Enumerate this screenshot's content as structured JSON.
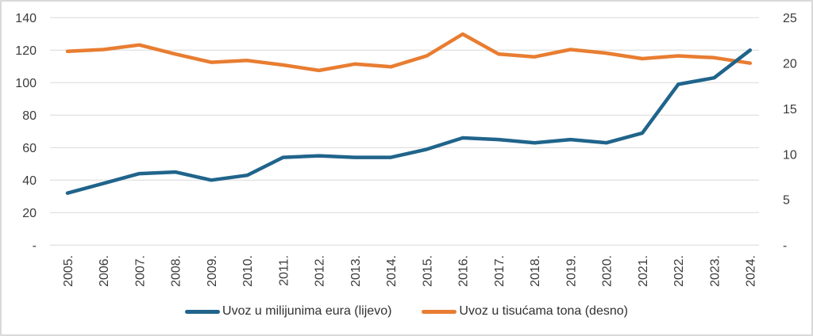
{
  "chart_data": {
    "type": "line",
    "title": "",
    "xlabel": "",
    "ylabel": "",
    "grid": true,
    "legend_position": "bottom",
    "categories": [
      "2005.",
      "2006.",
      "2007.",
      "2008.",
      "2009.",
      "2010.",
      "2011.",
      "2012.",
      "2013.",
      "2014.",
      "2015.",
      "2016.",
      "2017.",
      "2018.",
      "2019.",
      "2020.",
      "2021.",
      "2022.",
      "2023.",
      "2024."
    ],
    "series": [
      {
        "name": "Uvoz u milijunima eura (lijevo)",
        "axis": "left",
        "color": "#20648B",
        "values": [
          32,
          38,
          44,
          45,
          40,
          43,
          54,
          55,
          54,
          54,
          59,
          66,
          65,
          63,
          65,
          63,
          69,
          99,
          103,
          120
        ]
      },
      {
        "name": "Uvoz u tisućama tona (desno)",
        "axis": "right",
        "color": "#E87D31",
        "values": [
          21.3,
          21.5,
          22.0,
          21.0,
          20.1,
          20.3,
          19.8,
          19.2,
          19.9,
          19.6,
          20.8,
          23.2,
          21.0,
          20.7,
          21.5,
          21.1,
          20.5,
          20.8,
          20.6,
          20.0
        ]
      }
    ],
    "left_axis": {
      "min": 0,
      "max": 140,
      "tick_step": 20,
      "tick_labels": [
        "-",
        "20",
        "40",
        "60",
        "80",
        "100",
        "120",
        "140"
      ]
    },
    "right_axis": {
      "min": 0,
      "max": 25,
      "tick_step": 5,
      "tick_labels": [
        "-",
        "5",
        "10",
        "15",
        "20",
        "25"
      ]
    }
  },
  "colors": {
    "gridline": "#D9D9D9",
    "axis_text": "#3B3B3B"
  }
}
